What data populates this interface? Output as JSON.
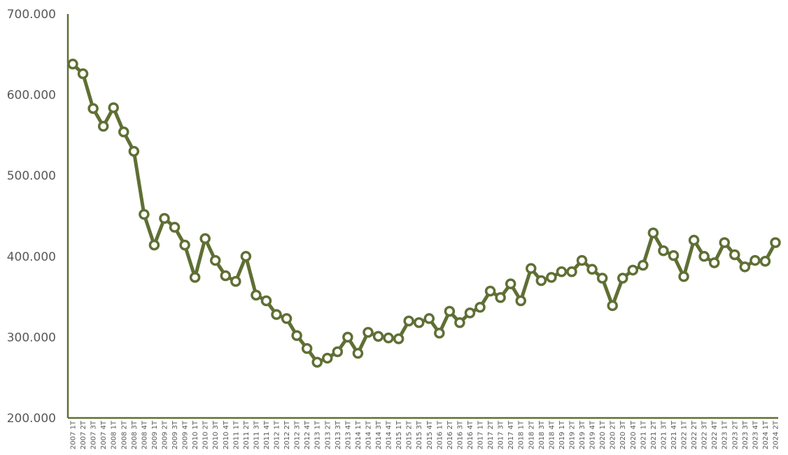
{
  "chart_data": {
    "type": "line",
    "title": "",
    "xlabel": "",
    "ylabel": "",
    "ylim": [
      200000,
      700000
    ],
    "y_ticks": [
      200000,
      300000,
      400000,
      500000,
      600000,
      700000
    ],
    "y_tick_labels": [
      "200.000",
      "300.000",
      "400.000",
      "500.000",
      "600.000",
      "700.000"
    ],
    "grid": false,
    "legend": "none",
    "colors": {
      "line": "#5f6f34",
      "marker_fill": "#ffffff",
      "axis": "#5f6f34",
      "text": "#595959"
    },
    "categories": [
      "2007 1T",
      "2007 2T",
      "2007 3T",
      "2007 4T",
      "2008 1T",
      "2008 2T",
      "2008 3T",
      "2008 4T",
      "2009 1T",
      "2009 2T",
      "2009 3T",
      "2009 4T",
      "2010 1T",
      "2010 2T",
      "2010 3T",
      "2010 4T",
      "2011 1T",
      "2011 2T",
      "2011 3T",
      "2011 4T",
      "2012 1T",
      "2012 2T",
      "2012 3T",
      "2012 4T",
      "2013 1T",
      "2013 2T",
      "2013 3T",
      "2013 4T",
      "2014 1T",
      "2014 2T",
      "2014 3T",
      "2014 4T",
      "2015 1T",
      "2015 2T",
      "2015 3T",
      "2015 4T",
      "2016 1T",
      "2016 2T",
      "2016 3T",
      "2016 4T",
      "2017 1T",
      "2017 2T",
      "2017 3T",
      "2017 4T",
      "2018 1T",
      "2018 2T",
      "2018 3T",
      "2018 4T",
      "2019 1T",
      "2019 2T",
      "2019 3T",
      "2019 4T",
      "2020 1T",
      "2020 2T",
      "2020 3T",
      "2020 4T",
      "2021 1T",
      "2021 2T",
      "2021 3T",
      "2021 4T",
      "2022 1T",
      "2022 2T",
      "2022 3T",
      "2022 4T",
      "2023 1T",
      "2023 2T",
      "2023 3T",
      "2023 4T",
      "2024 1T",
      "2024 2T"
    ],
    "series": [
      {
        "values": [
          638000,
          626000,
          583000,
          561000,
          584000,
          554000,
          530000,
          452000,
          414000,
          447000,
          436000,
          414000,
          374000,
          422000,
          395000,
          376000,
          369000,
          400000,
          352000,
          345000,
          328000,
          323000,
          302000,
          286000,
          269000,
          274000,
          282000,
          300000,
          280000,
          306000,
          301000,
          299000,
          298000,
          320000,
          318000,
          323000,
          305000,
          332000,
          318000,
          330000,
          337000,
          357000,
          349000,
          366000,
          345000,
          385000,
          370000,
          374000,
          381000,
          381000,
          395000,
          384000,
          373000,
          339000,
          373000,
          383000,
          389000,
          429000,
          407000,
          401000,
          375000,
          420000,
          400000,
          392000,
          417000,
          402000,
          387000,
          395000,
          394000,
          417000
        ]
      }
    ]
  }
}
